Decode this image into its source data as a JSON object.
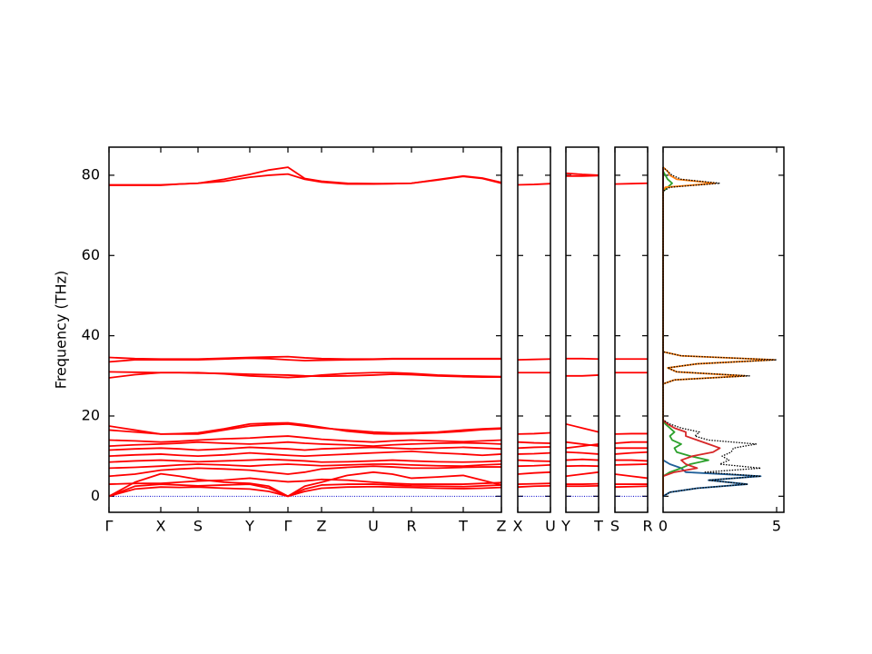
{
  "chart_data": [
    {
      "type": "line",
      "ylabel": "Frequency (THz)",
      "line_color": "#ff0000",
      "zero_line_color": "#0000cc",
      "xlim": [
        0,
        4.32
      ],
      "ylim": [
        -4,
        87
      ],
      "yticks": [
        0,
        20,
        40,
        60,
        80
      ],
      "xticks": [
        {
          "value": 0,
          "label": "Γ"
        },
        {
          "value": 0.57,
          "label": "X"
        },
        {
          "value": 0.98,
          "label": "S"
        },
        {
          "value": 1.55,
          "label": "Y"
        },
        {
          "value": 1.97,
          "label": "Γ"
        },
        {
          "value": 2.34,
          "label": "Z"
        },
        {
          "value": 2.91,
          "label": "U"
        },
        {
          "value": 3.33,
          "label": "R"
        },
        {
          "value": 3.9,
          "label": "T"
        },
        {
          "value": 4.32,
          "label": "Z"
        }
      ],
      "x": [
        0,
        0.285,
        0.57,
        0.775,
        0.98,
        1.265,
        1.55,
        1.76,
        1.97,
        2.155,
        2.34,
        2.625,
        2.91,
        3.12,
        3.33,
        3.615,
        3.9,
        4.11,
        4.32
      ],
      "series": [
        {
          "values": [
            0,
            1.8,
            2.3,
            2.2,
            2.3,
            2.0,
            1.8,
            1.2,
            0,
            1.2,
            2.0,
            2.3,
            2.4,
            2.3,
            2.2,
            2.0,
            1.9,
            2.0,
            2.2
          ]
        },
        {
          "values": [
            0,
            2.5,
            3.0,
            2.8,
            2.6,
            2.8,
            3.0,
            2.0,
            0,
            1.8,
            2.8,
            3.0,
            3.0,
            2.8,
            2.6,
            2.5,
            2.4,
            2.6,
            2.8
          ]
        },
        {
          "values": [
            0,
            3.5,
            5.6,
            5.0,
            4.2,
            3.5,
            3.2,
            2.5,
            0,
            2.5,
            3.5,
            5.2,
            6.0,
            5.5,
            4.5,
            4.8,
            5.2,
            4.0,
            2.8
          ]
        },
        {
          "values": [
            3.0,
            3.2,
            3.2,
            3.5,
            3.8,
            4.0,
            4.5,
            4.0,
            3.6,
            3.8,
            4.2,
            4.0,
            3.5,
            3.2,
            3.0,
            3.0,
            3.0,
            3.2,
            3.4
          ]
        },
        {
          "values": [
            5.0,
            5.5,
            6.5,
            6.8,
            7.0,
            6.8,
            6.5,
            6.0,
            5.5,
            6.0,
            6.8,
            7.2,
            7.5,
            7.3,
            7.0,
            7.0,
            7.2,
            7.3,
            7.3
          ]
        },
        {
          "values": [
            7.0,
            7.2,
            7.5,
            7.8,
            8.0,
            7.8,
            7.5,
            7.8,
            8.0,
            7.8,
            7.6,
            7.8,
            8.0,
            8.0,
            7.8,
            7.6,
            7.5,
            7.8,
            8.0
          ]
        },
        {
          "values": [
            8.5,
            8.8,
            9.0,
            8.8,
            8.6,
            8.8,
            9.0,
            9.2,
            9.0,
            8.8,
            8.5,
            8.6,
            8.8,
            9.0,
            8.8,
            8.6,
            8.5,
            8.6,
            8.8
          ]
        },
        {
          "values": [
            10.0,
            10.3,
            10.5,
            10.2,
            10.0,
            10.3,
            10.8,
            10.5,
            10.2,
            10.0,
            10.2,
            10.5,
            10.8,
            11.0,
            11.2,
            10.8,
            10.5,
            10.2,
            10.5
          ]
        },
        {
          "values": [
            11.5,
            11.8,
            12.0,
            11.8,
            11.5,
            11.8,
            12.2,
            12.0,
            11.8,
            11.5,
            11.8,
            12.0,
            12.2,
            12.0,
            11.8,
            12.0,
            12.2,
            12.0,
            11.8
          ]
        },
        {
          "values": [
            12.5,
            12.8,
            13.0,
            13.2,
            13.5,
            13.2,
            13.0,
            13.2,
            13.5,
            13.2,
            13.0,
            12.8,
            12.5,
            12.8,
            13.0,
            13.2,
            13.3,
            13.2,
            13.0
          ]
        },
        {
          "values": [
            14.0,
            13.8,
            13.5,
            13.7,
            14.0,
            14.3,
            14.5,
            14.8,
            15.0,
            14.6,
            14.2,
            13.8,
            13.5,
            13.8,
            14.0,
            13.8,
            13.6,
            13.8,
            14.0
          ]
        },
        {
          "values": [
            16.5,
            16.0,
            15.5,
            15.5,
            15.5,
            16.5,
            17.5,
            17.8,
            18.0,
            17.5,
            17.0,
            16.5,
            16.0,
            15.8,
            15.8,
            16.0,
            16.5,
            16.8,
            17.0
          ]
        },
        {
          "values": [
            17.5,
            16.5,
            15.5,
            15.6,
            15.8,
            16.8,
            18.0,
            18.2,
            18.3,
            17.8,
            17.2,
            16.2,
            15.6,
            15.5,
            15.6,
            15.8,
            16.2,
            16.6,
            16.8
          ]
        },
        {
          "values": [
            29.5,
            30.3,
            30.8,
            30.8,
            30.8,
            30.5,
            30.0,
            29.8,
            29.6,
            29.8,
            30.2,
            30.6,
            30.8,
            30.8,
            30.6,
            30.2,
            30.0,
            29.9,
            29.8
          ]
        },
        {
          "values": [
            31.0,
            30.9,
            30.8,
            30.8,
            30.7,
            30.6,
            30.4,
            30.3,
            30.2,
            30.0,
            29.9,
            30.0,
            30.2,
            30.4,
            30.3,
            30.0,
            29.8,
            29.7,
            29.7
          ]
        },
        {
          "values": [
            33.5,
            34.0,
            34.0,
            34.0,
            34.0,
            34.2,
            34.4,
            34.3,
            34.0,
            33.8,
            33.9,
            34.0,
            34.1,
            34.2,
            34.2,
            34.2,
            34.2,
            34.2,
            34.2
          ]
        },
        {
          "values": [
            34.6,
            34.3,
            34.2,
            34.2,
            34.2,
            34.4,
            34.6,
            34.7,
            34.8,
            34.5,
            34.3,
            34.2,
            34.2,
            34.3,
            34.3,
            34.3,
            34.3,
            34.3,
            34.3
          ]
        },
        {
          "values": [
            77.5,
            77.5,
            77.5,
            77.8,
            78.0,
            78.5,
            79.5,
            80.0,
            80.3,
            79.0,
            78.3,
            77.8,
            77.8,
            77.9,
            78.0,
            78.8,
            79.7,
            79.2,
            78.0
          ]
        },
        {
          "values": [
            77.6,
            77.6,
            77.6,
            77.8,
            78.0,
            79.0,
            80.2,
            81.3,
            82.0,
            79.2,
            78.5,
            78.0,
            77.9,
            77.9,
            78.0,
            78.9,
            79.8,
            79.3,
            78.2
          ]
        }
      ]
    },
    {
      "type": "line",
      "line_color": "#ff0000",
      "zero_line_color": "#0000cc",
      "xlim": [
        0,
        0.36
      ],
      "ylim": [
        -4,
        87
      ],
      "xticks": [
        {
          "value": 0,
          "label": "X"
        },
        {
          "value": 0.36,
          "label": "U"
        }
      ],
      "x": [
        0,
        0.18,
        0.36
      ],
      "series": [
        {
          "values": [
            2.3,
            2.5,
            2.6
          ]
        },
        {
          "values": [
            3.0,
            3.1,
            3.2
          ]
        },
        {
          "values": [
            5.5,
            5.8,
            6.0
          ]
        },
        {
          "values": [
            7.5,
            7.6,
            7.8
          ]
        },
        {
          "values": [
            9.0,
            8.8,
            8.7
          ]
        },
        {
          "values": [
            10.5,
            10.6,
            10.8
          ]
        },
        {
          "values": [
            12.0,
            12.2,
            12.3
          ]
        },
        {
          "values": [
            13.5,
            13.3,
            13.2
          ]
        },
        {
          "values": [
            15.5,
            15.6,
            15.8
          ]
        },
        {
          "values": [
            30.8,
            30.8,
            30.8
          ]
        },
        {
          "values": [
            34.0,
            34.1,
            34.2
          ]
        },
        {
          "values": [
            77.6,
            77.7,
            77.9
          ]
        }
      ]
    },
    {
      "type": "line",
      "line_color": "#ff0000",
      "zero_line_color": "#0000cc",
      "xlim": [
        0,
        0.36
      ],
      "ylim": [
        -4,
        87
      ],
      "xticks": [
        {
          "value": 0,
          "label": "Y"
        },
        {
          "value": 0.36,
          "label": "T"
        }
      ],
      "x": [
        0,
        0.18,
        0.36
      ],
      "series": [
        {
          "values": [
            2.5,
            2.5,
            2.6
          ]
        },
        {
          "values": [
            3.0,
            3.0,
            3.1
          ]
        },
        {
          "values": [
            5.0,
            5.5,
            6.0
          ]
        },
        {
          "values": [
            7.5,
            7.6,
            7.5
          ]
        },
        {
          "values": [
            9.0,
            9.2,
            9.0
          ]
        },
        {
          "values": [
            11.0,
            10.8,
            10.5
          ]
        },
        {
          "values": [
            12.0,
            12.5,
            13.0
          ]
        },
        {
          "values": [
            13.5,
            13.0,
            12.5
          ]
        },
        {
          "values": [
            18.0,
            17.0,
            16.0
          ]
        },
        {
          "values": [
            30.0,
            30.0,
            30.2
          ]
        },
        {
          "values": [
            34.3,
            34.3,
            34.2
          ]
        },
        {
          "values": [
            80.5,
            80.2,
            80.0
          ]
        },
        {
          "values": [
            79.8,
            79.8,
            79.9
          ]
        }
      ]
    },
    {
      "type": "line",
      "line_color": "#ff0000",
      "zero_line_color": "#0000cc",
      "xlim": [
        0,
        0.36
      ],
      "ylim": [
        -4,
        87
      ],
      "xticks": [
        {
          "value": 0,
          "label": "S"
        },
        {
          "value": 0.36,
          "label": "R"
        }
      ],
      "x": [
        0,
        0.18,
        0.36
      ],
      "series": [
        {
          "values": [
            2.3,
            2.4,
            2.5
          ]
        },
        {
          "values": [
            3.0,
            3.0,
            3.0
          ]
        },
        {
          "values": [
            5.5,
            5.0,
            4.5
          ]
        },
        {
          "values": [
            7.8,
            7.9,
            8.0
          ]
        },
        {
          "values": [
            9.0,
            9.0,
            8.8
          ]
        },
        {
          "values": [
            10.5,
            10.8,
            11.0
          ]
        },
        {
          "values": [
            12.0,
            12.0,
            12.0
          ]
        },
        {
          "values": [
            13.2,
            13.5,
            13.5
          ]
        },
        {
          "values": [
            15.5,
            15.6,
            15.6
          ]
        },
        {
          "values": [
            30.8,
            30.8,
            30.8
          ]
        },
        {
          "values": [
            34.2,
            34.2,
            34.2
          ]
        },
        {
          "values": [
            77.8,
            77.9,
            78.0
          ]
        }
      ]
    },
    {
      "type": "line",
      "horizontal": true,
      "xlim": [
        0,
        5.32
      ],
      "ylim": [
        -4,
        87
      ],
      "xticks": [
        0,
        5
      ],
      "y": [
        0,
        1,
        2,
        3,
        4,
        5,
        6,
        7,
        8,
        9,
        10,
        11,
        12,
        13,
        14,
        15,
        16,
        17,
        18,
        19,
        28,
        29,
        30,
        31,
        32,
        33,
        34,
        35,
        36,
        76,
        77,
        78,
        79,
        80,
        81,
        82
      ],
      "series": [
        {
          "color": "#1f5f99",
          "values": [
            0,
            0.3,
            1.5,
            3.7,
            2.0,
            4.3,
            1.0,
            0.8,
            0.3,
            0,
            0,
            0,
            0,
            0,
            0,
            0,
            0,
            0,
            0,
            0,
            0,
            0,
            0,
            0,
            0,
            0,
            0,
            0,
            0,
            0,
            0,
            0,
            0,
            0,
            0,
            0
          ]
        },
        {
          "color": "#2ca02c",
          "values": [
            0,
            0,
            0,
            0,
            0,
            0,
            0.3,
            0.8,
            1.2,
            2.0,
            1.2,
            0.6,
            0.5,
            0.8,
            0.4,
            0.3,
            0.5,
            0.3,
            0.1,
            0,
            0,
            0,
            0,
            0,
            0,
            0,
            0,
            0,
            0,
            0,
            0.2,
            0.4,
            0.2,
            0.1,
            0,
            0
          ]
        },
        {
          "color": "#d62728",
          "values": [
            0,
            0,
            0,
            0,
            0,
            0,
            0.5,
            1.5,
            1.0,
            0.8,
            1.3,
            2.2,
            2.5,
            2.0,
            1.5,
            1.0,
            1.0,
            0.5,
            0.2,
            0,
            0,
            0,
            0,
            0,
            0,
            0,
            0,
            0,
            0,
            0,
            0,
            0,
            0,
            0,
            0,
            0
          ]
        },
        {
          "color": "#ff7f0e",
          "values": [
            0,
            0,
            0,
            0,
            0,
            0,
            0,
            0,
            0,
            0,
            0,
            0,
            0,
            0,
            0,
            0,
            0,
            0,
            0,
            0,
            0,
            0.5,
            3.6,
            0.6,
            0.2,
            1.5,
            4.9,
            0.8,
            0,
            0,
            0.1,
            2.3,
            0.6,
            0.3,
            0.2,
            0
          ]
        },
        {
          "color": "#000000",
          "dashed": true,
          "values": [
            0,
            0.3,
            1.5,
            3.7,
            2.0,
            4.3,
            1.8,
            4.3,
            2.5,
            2.9,
            2.6,
            3.0,
            3.1,
            4.1,
            2.0,
            1.4,
            1.6,
            0.8,
            0.3,
            0,
            0,
            0.5,
            3.8,
            0.6,
            0.2,
            1.5,
            5.0,
            0.8,
            0,
            0,
            0.3,
            2.5,
            0.8,
            0.4,
            0.2,
            0
          ]
        }
      ]
    }
  ]
}
